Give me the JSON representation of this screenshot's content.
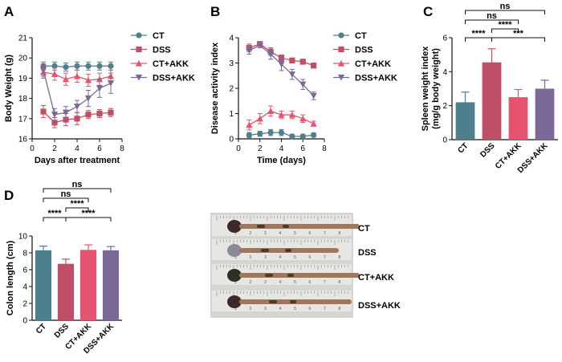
{
  "panels": {
    "A": "A",
    "B": "B",
    "C": "C",
    "D": "D"
  },
  "colors": {
    "CT": "#4e7f8d",
    "DSS": "#bf4f66",
    "CT+AKK": "#e6536f",
    "DSS+AKK": "#7a6898",
    "error": "#333333"
  },
  "chart_data": [
    {
      "panel": "A",
      "type": "line",
      "xlabel": "Days after treatment",
      "ylabel": "Body Weight (g)",
      "xlim": [
        0,
        8
      ],
      "ylim": [
        16,
        21
      ],
      "xticks": [
        0,
        2,
        4,
        6,
        8
      ],
      "yticks": [
        16,
        17,
        18,
        19,
        20,
        21
      ],
      "legend_position": "right",
      "x": [
        1,
        2,
        3,
        4,
        5,
        6,
        7
      ],
      "series": [
        {
          "name": "CT",
          "marker": "circle",
          "values": [
            19.6,
            19.6,
            19.55,
            19.6,
            19.6,
            19.6,
            19.6
          ],
          "errors": [
            0.2,
            0.2,
            0.2,
            0.2,
            0.2,
            0.2,
            0.2
          ]
        },
        {
          "name": "DSS",
          "marker": "square",
          "values": [
            17.35,
            16.8,
            16.95,
            17.0,
            17.2,
            17.25,
            17.3
          ],
          "errors": [
            0.3,
            0.25,
            0.3,
            0.3,
            0.2,
            0.2,
            0.2
          ]
        },
        {
          "name": "CT+AKK",
          "marker": "triangle-up",
          "values": [
            19.3,
            19.2,
            18.95,
            19.1,
            18.9,
            18.95,
            19.1
          ],
          "errors": [
            0.3,
            0.3,
            0.3,
            0.3,
            0.3,
            0.3,
            0.3
          ]
        },
        {
          "name": "DSS+AKK",
          "marker": "triangle-down",
          "values": [
            19.4,
            17.2,
            17.3,
            17.6,
            18.0,
            18.5,
            18.75
          ],
          "errors": [
            0.3,
            0.3,
            0.3,
            0.3,
            0.4,
            0.45,
            0.5
          ]
        }
      ]
    },
    {
      "panel": "B",
      "type": "line",
      "xlabel": "Time (days)",
      "ylabel": "Disease activity index",
      "xlim": [
        0,
        8
      ],
      "ylim": [
        0,
        4
      ],
      "xticks": [
        0,
        2,
        4,
        6,
        8
      ],
      "yticks": [
        0,
        1,
        2,
        3,
        4
      ],
      "legend_position": "right",
      "x": [
        1,
        2,
        3,
        4,
        5,
        6,
        7
      ],
      "series": [
        {
          "name": "CT",
          "marker": "circle",
          "values": [
            0.15,
            0.2,
            0.25,
            0.25,
            0.1,
            0.1,
            0.15
          ],
          "errors": [
            0.1,
            0.1,
            0.12,
            0.12,
            0.08,
            0.08,
            0.08
          ]
        },
        {
          "name": "DSS",
          "marker": "square",
          "values": [
            3.6,
            3.75,
            3.45,
            3.2,
            3.1,
            3.05,
            2.9
          ],
          "errors": [
            0.15,
            0.1,
            0.15,
            0.12,
            0.1,
            0.1,
            0.1
          ]
        },
        {
          "name": "CT+AKK",
          "marker": "triangle-up",
          "values": [
            0.55,
            0.8,
            1.1,
            0.95,
            0.95,
            0.8,
            0.6
          ],
          "errors": [
            0.2,
            0.2,
            0.2,
            0.15,
            0.15,
            0.15,
            0.1
          ]
        },
        {
          "name": "DSS+AKK",
          "marker": "triangle-down",
          "values": [
            3.5,
            3.7,
            3.35,
            2.95,
            2.55,
            2.15,
            1.7
          ],
          "errors": [
            0.15,
            0.1,
            0.2,
            0.25,
            0.2,
            0.2,
            0.15
          ]
        }
      ]
    },
    {
      "panel": "C",
      "type": "bar",
      "ylabel": "Spleen weight index (mg/g body weight)",
      "ylim": [
        0,
        6
      ],
      "yticks": [
        0,
        2,
        4,
        6
      ],
      "categories": [
        "CT",
        "DSS",
        "CT+AKK",
        "DSS+AKK"
      ],
      "values": [
        2.2,
        4.55,
        2.5,
        3.0
      ],
      "errors": [
        0.6,
        0.8,
        0.45,
        0.5
      ],
      "comparisons": [
        {
          "a": 0,
          "b": 1,
          "label": "****"
        },
        {
          "a": 1,
          "b": 2,
          "label": "****"
        },
        {
          "a": 1,
          "b": 3,
          "label": "***"
        },
        {
          "a": 0,
          "b": 2,
          "label": "ns"
        },
        {
          "a": 0,
          "b": 3,
          "label": "ns"
        }
      ]
    },
    {
      "panel": "D",
      "type": "bar",
      "ylabel": "Colon length (cm)",
      "ylim": [
        0,
        10
      ],
      "yticks": [
        0,
        2,
        4,
        6,
        8,
        10
      ],
      "categories": [
        "CT",
        "DSS",
        "CT+AKK",
        "DSS+AKK"
      ],
      "values": [
        8.3,
        6.7,
        8.35,
        8.3
      ],
      "errors": [
        0.5,
        0.55,
        0.6,
        0.45
      ],
      "comparisons": [
        {
          "a": 0,
          "b": 1,
          "label": "****"
        },
        {
          "a": 1,
          "b": 2,
          "label": "****"
        },
        {
          "a": 1,
          "b": 3,
          "label": "****"
        },
        {
          "a": 0,
          "b": 2,
          "label": "ns"
        },
        {
          "a": 0,
          "b": 3,
          "label": "ns"
        }
      ]
    }
  ],
  "photo": {
    "labels": [
      "CT",
      "DSS",
      "CT+AKK",
      "DSS+AKK"
    ],
    "ruler_ticks": [
      "1",
      "2",
      "3",
      "4",
      "5",
      "6",
      "7",
      "8"
    ]
  }
}
